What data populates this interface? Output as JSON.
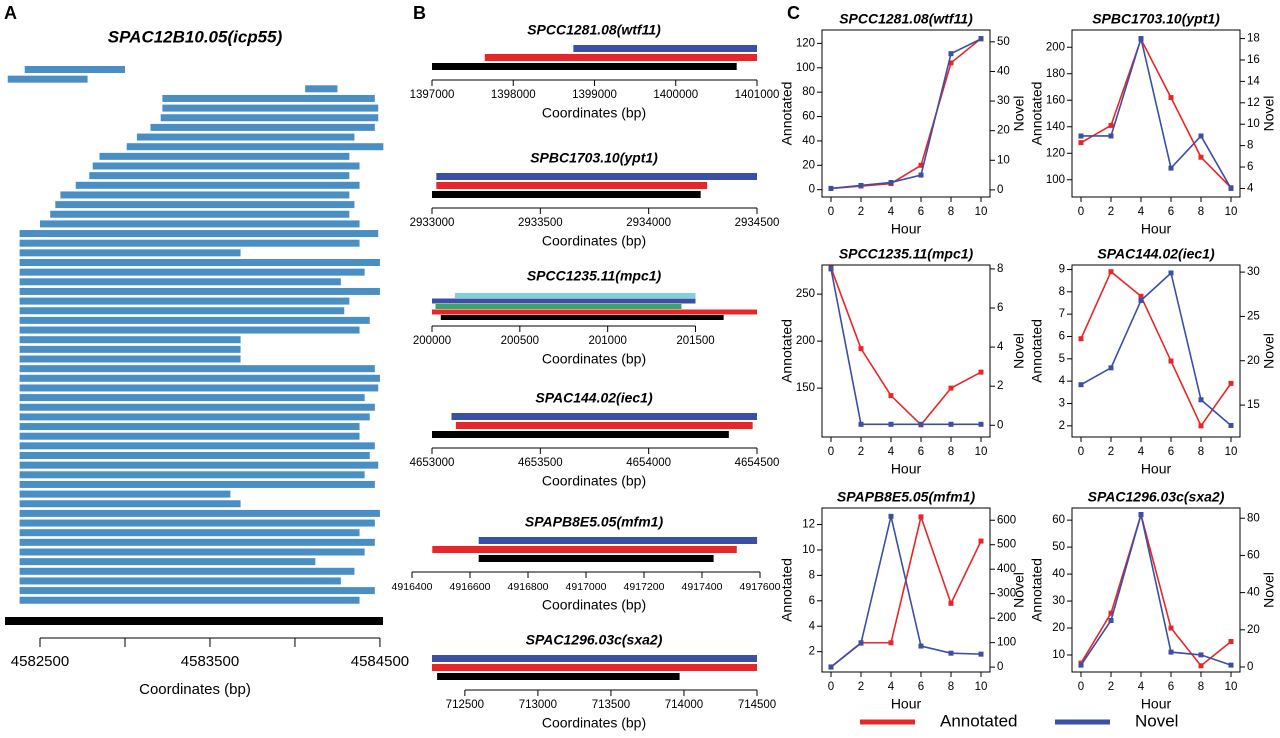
{
  "chart_data": [
    {
      "type": "gene-track",
      "label": "A",
      "title": "SPAC12B10.05(icp55)",
      "xlabel": "Coordinates (bp)",
      "xlim": [
        4582294,
        4584518
      ],
      "xticks": [
        4582500,
        4583500,
        4584500
      ],
      "xminorticks": [
        4583000,
        4584000
      ],
      "color": "#4a8fc4",
      "tracks": [
        [
          4582410,
          4583000
        ],
        [
          4582310,
          4582780
        ],
        [
          4584060,
          4584250
        ],
        [
          4583220,
          4584470
        ],
        [
          4583220,
          4584490
        ],
        [
          4583210,
          4584490
        ],
        [
          4583150,
          4584470
        ],
        [
          4583070,
          4584350
        ],
        [
          4583010,
          4584520
        ],
        [
          4582850,
          4584320
        ],
        [
          4582810,
          4584380
        ],
        [
          4582790,
          4584320
        ],
        [
          4582710,
          4584380
        ],
        [
          4582620,
          4584320
        ],
        [
          4582590,
          4584350
        ],
        [
          4582560,
          4584320
        ],
        [
          4582500,
          4584380
        ],
        [
          4582380,
          4584490
        ],
        [
          4582380,
          4584380
        ],
        [
          4582380,
          4583680
        ],
        [
          4582380,
          4584500
        ],
        [
          4582380,
          4584410
        ],
        [
          4582380,
          4584270
        ],
        [
          4582380,
          4584500
        ],
        [
          4582380,
          4584320
        ],
        [
          4582380,
          4584290
        ],
        [
          4582380,
          4584440
        ],
        [
          4582380,
          4584380
        ],
        [
          4582380,
          4583680
        ],
        [
          4582380,
          4583680
        ],
        [
          4582380,
          4583680
        ],
        [
          4582380,
          4584470
        ],
        [
          4582380,
          4584500
        ],
        [
          4582380,
          4584490
        ],
        [
          4582380,
          4584410
        ],
        [
          4582380,
          4584470
        ],
        [
          4582380,
          4584440
        ],
        [
          4582380,
          4584380
        ],
        [
          4582380,
          4584380
        ],
        [
          4582380,
          4584470
        ],
        [
          4582380,
          4584440
        ],
        [
          4582380,
          4584490
        ],
        [
          4582380,
          4584410
        ],
        [
          4582380,
          4584470
        ],
        [
          4582380,
          4583620
        ],
        [
          4582380,
          4583680
        ],
        [
          4582380,
          4584500
        ],
        [
          4582380,
          4584470
        ],
        [
          4582380,
          4584380
        ],
        [
          4582380,
          4584470
        ],
        [
          4582380,
          4584410
        ],
        [
          4582380,
          4584120
        ],
        [
          4582380,
          4584350
        ],
        [
          4582380,
          4584270
        ],
        [
          4582380,
          4584470
        ],
        [
          4582380,
          4584380
        ]
      ],
      "reference": [
        4582294,
        4584518
      ],
      "reference_color": "#000000"
    },
    {
      "type": "gene-track",
      "label": "B",
      "title": "SPCC1281.08(wtf11)",
      "xlabel": "Coordinates (bp)",
      "xlim": [
        1397000,
        1401000
      ],
      "xticks": [
        1397000,
        1398000,
        1399000,
        1400000,
        1401000
      ],
      "tracks": [
        {
          "color": "#3b4fa3",
          "start": 1398740,
          "end": 1401000
        },
        {
          "color": "#e8262a",
          "start": 1397650,
          "end": 1401000
        },
        {
          "color": "#000000",
          "start": 1397000,
          "end": 1400750
        }
      ]
    },
    {
      "type": "gene-track",
      "title": "SPBC1703.10(ypt1)",
      "xlabel": "Coordinates (bp)",
      "xlim": [
        2933000,
        2934500
      ],
      "xticks": [
        2933000,
        2933500,
        2934000,
        2934500
      ],
      "tracks": [
        {
          "color": "#3b4fa3",
          "start": 2933020,
          "end": 2934500
        },
        {
          "color": "#e8262a",
          "start": 2933020,
          "end": 2934270
        },
        {
          "color": "#000000",
          "start": 2933000,
          "end": 2934240
        }
      ]
    },
    {
      "type": "gene-track",
      "title": "SPCC1235.11(mpc1)",
      "xlabel": "Coordinates (bp)",
      "xlim": [
        200000,
        201850
      ],
      "xticks": [
        200000,
        200500,
        201000,
        201500
      ],
      "tracks": [
        {
          "color": "#7fd0d8",
          "start": 200130,
          "end": 201500
        },
        {
          "color": "#3b4fa3",
          "start": 200000,
          "end": 201500
        },
        {
          "color": "#3aa56a",
          "start": 200020,
          "end": 201420
        },
        {
          "color": "#e8262a",
          "start": 200000,
          "end": 201850
        },
        {
          "color": "#000000",
          "start": 200050,
          "end": 201660
        }
      ]
    },
    {
      "type": "gene-track",
      "title": "SPAC144.02(iec1)",
      "xlabel": "Coordinates (bp)",
      "xlim": [
        4653000,
        4654500
      ],
      "xticks": [
        4653000,
        4653500,
        4654000,
        4654500
      ],
      "tracks": [
        {
          "color": "#3b4fa3",
          "start": 4653090,
          "end": 4654500
        },
        {
          "color": "#e8262a",
          "start": 4653110,
          "end": 4654480
        },
        {
          "color": "#000000",
          "start": 4653000,
          "end": 4654370
        }
      ]
    },
    {
      "type": "gene-track",
      "title": "SPAPB8E5.05(mfm1)",
      "xlabel": "Coordinates (bp)",
      "xlim": [
        4916400,
        4917600
      ],
      "xticks": [
        4916400,
        4916600,
        4916800,
        4917000,
        4917200,
        4917400,
        4917600
      ],
      "tracks": [
        {
          "color": "#3b4fa3",
          "start": 4916630,
          "end": 4917590
        },
        {
          "color": "#e8262a",
          "start": 4916470,
          "end": 4917520
        },
        {
          "color": "#000000",
          "start": 4916630,
          "end": 4917440
        }
      ]
    },
    {
      "type": "gene-track",
      "title": "SPAC1296.03c(sxa2)",
      "xlabel": "Coordinates (bp)",
      "xlim": [
        712275,
        714500
      ],
      "xticks": [
        712500,
        713000,
        713500,
        714000,
        714500
      ],
      "tracks": [
        {
          "color": "#3b4fa3",
          "start": 712275,
          "end": 714500
        },
        {
          "color": "#e8262a",
          "start": 712275,
          "end": 714500
        },
        {
          "color": "#000000",
          "start": 712310,
          "end": 713970
        }
      ]
    },
    {
      "type": "line",
      "label": "C",
      "title": "SPCC1281.08(wtf11)",
      "xlabel": "Hour",
      "ylabel": "Annotated",
      "y2label": "Novel",
      "x": [
        0,
        2,
        4,
        6,
        8,
        10
      ],
      "xlim": [
        -0.6,
        10.6
      ],
      "xticks": [
        0,
        2,
        4,
        6,
        8,
        10
      ],
      "ylim": [
        -6,
        131
      ],
      "yticks": [
        0,
        20,
        40,
        60,
        80,
        100,
        120
      ],
      "y2lim": [
        -2.4,
        54
      ],
      "y2ticks": [
        0,
        10,
        20,
        30,
        40,
        50
      ],
      "legend": "bottom",
      "series": [
        {
          "name": "Annotated",
          "color": "#e8262a",
          "values": [
            1,
            3,
            5,
            20,
            104,
            124
          ]
        },
        {
          "name": "Novel",
          "color": "#3b4fa3",
          "axis": "y2",
          "values": [
            0.5,
            1.5,
            2.5,
            5,
            46,
            51
          ]
        }
      ]
    },
    {
      "type": "line",
      "title": "SPBC1703.10(ypt1)",
      "xlabel": "Hour",
      "ylabel": "Annotated",
      "y2label": "Novel",
      "x": [
        0,
        2,
        4,
        6,
        8,
        10
      ],
      "xlim": [
        -0.6,
        10.6
      ],
      "xticks": [
        0,
        2,
        4,
        6,
        8,
        10
      ],
      "ylim": [
        87,
        213
      ],
      "yticks": [
        100,
        120,
        140,
        160,
        180,
        200
      ],
      "y2lim": [
        3.2,
        18.8
      ],
      "y2ticks": [
        4,
        6,
        8,
        10,
        12,
        14,
        16,
        18
      ],
      "series": [
        {
          "color": "#e8262a",
          "values": [
            128,
            141,
            206,
            162,
            117,
            94
          ]
        },
        {
          "color": "#3b4fa3",
          "axis": "y2",
          "values": [
            8.9,
            8.9,
            18,
            5.9,
            8.9,
            4
          ]
        }
      ]
    },
    {
      "type": "line",
      "title": "SPCC1235.11(mpc1)",
      "xlabel": "Hour",
      "ylabel": "Annotated",
      "y2label": "Novel",
      "x": [
        0,
        2,
        4,
        6,
        8,
        10
      ],
      "xlim": [
        -0.6,
        10.6
      ],
      "xticks": [
        0,
        2,
        4,
        6,
        8,
        10
      ],
      "ylim": [
        98,
        281
      ],
      "yticks": [
        150,
        200,
        250
      ],
      "y2lim": [
        -0.6,
        8.2
      ],
      "y2ticks": [
        0,
        2,
        4,
        6,
        8
      ],
      "series": [
        {
          "color": "#e8262a",
          "values": [
            278,
            192,
            142,
            111,
            150,
            167
          ]
        },
        {
          "color": "#3b4fa3",
          "axis": "y2",
          "values": [
            8,
            0.05,
            0.05,
            0.05,
            0.05,
            0.05
          ]
        }
      ]
    },
    {
      "type": "line",
      "title": "SPAC144.02(iec1)",
      "xlabel": "Hour",
      "ylabel": "Annotated",
      "y2label": "Novel",
      "x": [
        0,
        2,
        4,
        6,
        8,
        10
      ],
      "xlim": [
        -0.6,
        10.6
      ],
      "xticks": [
        0,
        2,
        4,
        6,
        8,
        10
      ],
      "ylim": [
        1.5,
        9.2
      ],
      "yticks": [
        2,
        3,
        4,
        5,
        6,
        7,
        8,
        9
      ],
      "y2lim": [
        11.4,
        30.8
      ],
      "y2ticks": [
        15,
        20,
        25,
        30
      ],
      "series": [
        {
          "color": "#e8262a",
          "values": [
            5.9,
            8.9,
            7.8,
            4.9,
            2,
            3.9
          ]
        },
        {
          "color": "#3b4fa3",
          "axis": "y2",
          "values": [
            17.3,
            19.2,
            26.8,
            29.9,
            15.6,
            12.7
          ]
        }
      ]
    },
    {
      "type": "line",
      "title": "SPAPB8E5.05(mfm1)",
      "xlabel": "Hour",
      "ylabel": "Annotated",
      "y2label": "Novel",
      "x": [
        0,
        2,
        4,
        6,
        8,
        10
      ],
      "xlim": [
        -0.6,
        10.6
      ],
      "xticks": [
        0,
        2,
        4,
        6,
        8,
        10
      ],
      "ylim": [
        0.4,
        13.3
      ],
      "yticks": [
        2,
        4,
        6,
        8,
        10,
        12
      ],
      "y2lim": [
        -20,
        650
      ],
      "y2ticks": [
        0,
        100,
        200,
        300,
        400,
        500,
        600
      ],
      "series": [
        {
          "color": "#e8262a",
          "values": [
            0.8,
            2.7,
            2.7,
            12.6,
            5.8,
            10.7
          ]
        },
        {
          "color": "#3b4fa3",
          "axis": "y2",
          "values": [
            0,
            98,
            616,
            86,
            57,
            53
          ]
        }
      ]
    },
    {
      "type": "line",
      "title": "SPAC1296.03c(sxa2)",
      "xlabel": "Hour",
      "ylabel": "Annotated",
      "y2label": "Novel",
      "x": [
        0,
        2,
        4,
        6,
        8,
        10
      ],
      "xlim": [
        -0.6,
        10.6
      ],
      "xticks": [
        0,
        2,
        4,
        6,
        8,
        10
      ],
      "ylim": [
        3.7,
        64.5
      ],
      "yticks": [
        10,
        20,
        30,
        40,
        50,
        60
      ],
      "y2lim": [
        -2.7,
        85.5
      ],
      "y2ticks": [
        0,
        20,
        40,
        60,
        80
      ],
      "series": [
        {
          "color": "#e8262a",
          "values": [
            7,
            25.5,
            62,
            20,
            6,
            15
          ]
        },
        {
          "color": "#3b4fa3",
          "axis": "y2",
          "values": [
            1,
            25,
            82,
            8,
            6.5,
            1
          ]
        }
      ]
    }
  ]
}
